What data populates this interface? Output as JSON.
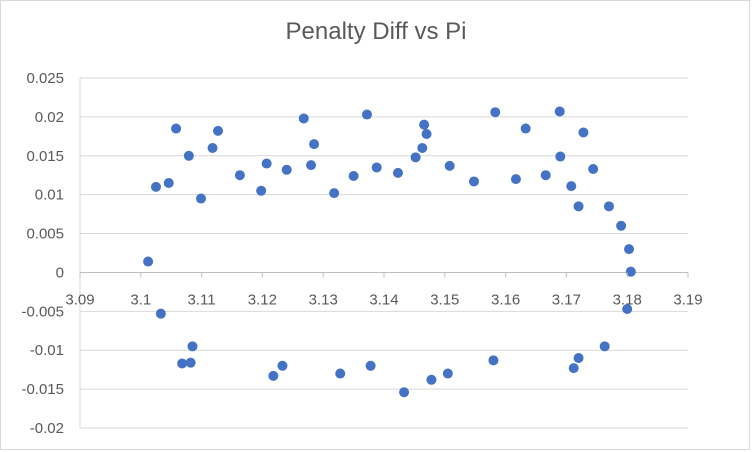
{
  "chart_data": {
    "type": "scatter",
    "title": "Penalty Diff vs Pi",
    "xlabel": "",
    "ylabel": "",
    "xlim": [
      3.09,
      3.19
    ],
    "ylim": [
      -0.02,
      0.025
    ],
    "x_ticks": [
      "3.09",
      "3.1",
      "3.11",
      "3.12",
      "3.13",
      "3.14",
      "3.15",
      "3.16",
      "3.17",
      "3.18",
      "3.19"
    ],
    "y_ticks": [
      "0.025",
      "0.02",
      "0.015",
      "0.01",
      "0.005",
      "0",
      "-0.005",
      "-0.01",
      "-0.015",
      "-0.02"
    ],
    "grid": "horizontal",
    "legend": "none",
    "marker_color": "#4472C4",
    "series": [
      {
        "points": [
          [
            3.1012,
            0.0014
          ],
          [
            3.1058,
            0.0185
          ],
          [
            3.1079,
            0.015
          ],
          [
            3.1127,
            0.0182
          ],
          [
            3.1207,
            0.014
          ],
          [
            3.1268,
            0.0198
          ],
          [
            3.1285,
            0.0165
          ],
          [
            3.1372,
            0.0203
          ],
          [
            3.1466,
            0.019
          ],
          [
            3.147,
            0.0178
          ],
          [
            3.1583,
            0.0206
          ],
          [
            3.1633,
            0.0185
          ],
          [
            3.1689,
            0.0207
          ],
          [
            3.169,
            0.0149
          ],
          [
            3.1728,
            0.018
          ],
          [
            3.1744,
            0.0133
          ],
          [
            3.1025,
            0.011
          ],
          [
            3.1046,
            0.0115
          ],
          [
            3.1099,
            0.0095
          ],
          [
            3.1118,
            0.016
          ],
          [
            3.1163,
            0.0125
          ],
          [
            3.1198,
            0.0105
          ],
          [
            3.124,
            0.0132
          ],
          [
            3.128,
            0.0138
          ],
          [
            3.1318,
            0.0102
          ],
          [
            3.135,
            0.0124
          ],
          [
            3.1388,
            0.0135
          ],
          [
            3.1423,
            0.0128
          ],
          [
            3.1452,
            0.0148
          ],
          [
            3.1463,
            0.016
          ],
          [
            3.1508,
            0.0137
          ],
          [
            3.1548,
            0.0117
          ],
          [
            3.1617,
            0.012
          ],
          [
            3.1666,
            0.0125
          ],
          [
            3.1708,
            0.0111
          ],
          [
            3.172,
            0.0085
          ],
          [
            3.1033,
            -0.0053
          ],
          [
            3.1068,
            -0.0117
          ],
          [
            3.1085,
            -0.0095
          ],
          [
            3.1082,
            -0.0116
          ],
          [
            3.1218,
            -0.0133
          ],
          [
            3.1233,
            -0.012
          ],
          [
            3.1328,
            -0.013
          ],
          [
            3.1378,
            -0.012
          ],
          [
            3.1433,
            -0.0154
          ],
          [
            3.1478,
            -0.0138
          ],
          [
            3.1505,
            -0.013
          ],
          [
            3.158,
            -0.0113
          ],
          [
            3.1712,
            -0.0123
          ],
          [
            3.172,
            -0.011
          ],
          [
            3.1763,
            -0.0095
          ],
          [
            3.18,
            -0.0047
          ],
          [
            3.1806,
            0.0001
          ],
          [
            3.1803,
            0.003
          ],
          [
            3.179,
            0.006
          ],
          [
            3.177,
            0.0085
          ]
        ]
      }
    ]
  }
}
